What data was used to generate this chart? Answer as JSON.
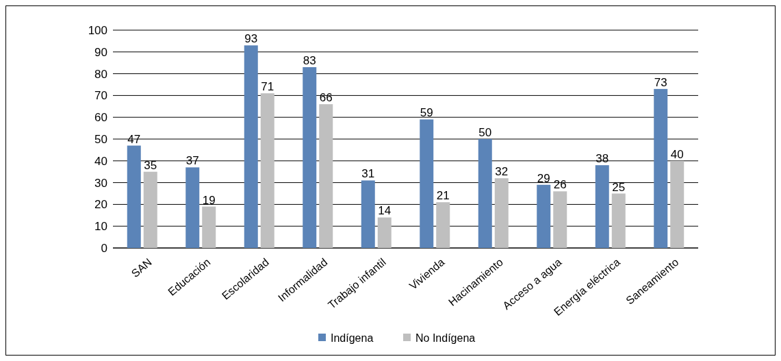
{
  "chart_data": {
    "type": "bar",
    "categories": [
      "SAN",
      "Educación",
      "Escolaridad",
      "Informalidad",
      "Trabajo infantil",
      "Vivienda",
      "Hacinamiento",
      "Acceso a agua",
      "Energía eléctrica",
      "Saneamiento"
    ],
    "series": [
      {
        "name": "Indígena",
        "color": "#5b84b8",
        "values": [
          47,
          37,
          93,
          83,
          31,
          59,
          50,
          29,
          38,
          73
        ]
      },
      {
        "name": "No Indígena",
        "color": "#bfbfbf",
        "values": [
          35,
          19,
          71,
          66,
          14,
          21,
          32,
          26,
          25,
          40
        ]
      }
    ],
    "ylim": [
      0,
      100
    ],
    "yticks": [
      0,
      10,
      20,
      30,
      40,
      50,
      60,
      70,
      80,
      90,
      100
    ],
    "grid": "y",
    "legend": "bottom",
    "data_labels": true
  }
}
